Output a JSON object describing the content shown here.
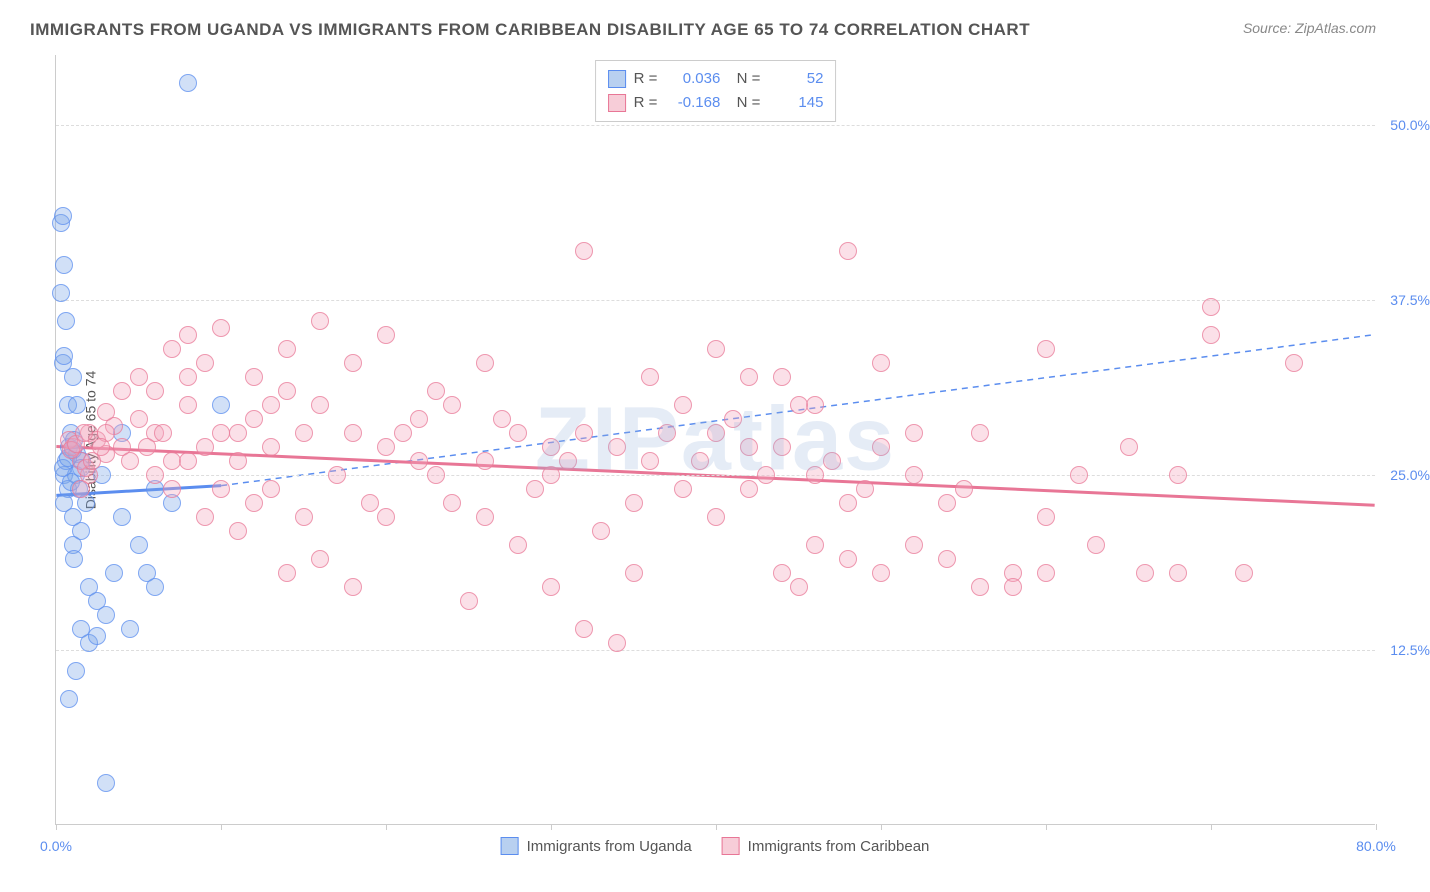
{
  "title": "IMMIGRANTS FROM UGANDA VS IMMIGRANTS FROM CARIBBEAN DISABILITY AGE 65 TO 74 CORRELATION CHART",
  "source": "Source: ZipAtlas.com",
  "watermark": "ZIPatlas",
  "chart": {
    "type": "scatter",
    "y_axis_title": "Disability Age 65 to 74",
    "xlim": [
      0,
      80
    ],
    "ylim": [
      0,
      55
    ],
    "xtick_labels": {
      "0": "0.0%",
      "80": "80.0%"
    },
    "ytick_labels": {
      "12.5": "12.5%",
      "25": "25.0%",
      "37.5": "37.5%",
      "50": "50.0%"
    },
    "xtick_positions": [
      0,
      10,
      20,
      30,
      40,
      50,
      60,
      70,
      80
    ],
    "grid_color": "#dddddd",
    "background_color": "#ffffff",
    "marker_size": 18,
    "series": [
      {
        "name": "Immigrants from Uganda",
        "color_fill": "rgba(123,167,232,0.35)",
        "color_stroke": "rgba(91,141,239,0.7)",
        "swatch_fill": "#b8d0f0",
        "swatch_border": "#5b8def",
        "R": "0.036",
        "N": "52",
        "trend": {
          "x1": 0,
          "y1": 23.5,
          "x2": 10,
          "y2": 24.2,
          "solid": true,
          "extend_x2": 80,
          "extend_y2": 35,
          "color": "#5b8def",
          "width": 3
        },
        "points": [
          [
            0.5,
            25
          ],
          [
            0.6,
            26
          ],
          [
            0.7,
            24
          ],
          [
            0.8,
            27
          ],
          [
            0.5,
            23
          ],
          [
            0.9,
            28
          ],
          [
            1.0,
            22
          ],
          [
            1.2,
            25
          ],
          [
            1.3,
            26.5
          ],
          [
            1.4,
            24
          ],
          [
            0.4,
            33
          ],
          [
            0.5,
            33.5
          ],
          [
            1.5,
            21
          ],
          [
            0.3,
            38
          ],
          [
            1.0,
            20
          ],
          [
            1.1,
            19
          ],
          [
            0.7,
            30
          ],
          [
            2,
            17
          ],
          [
            2.5,
            16
          ],
          [
            0.3,
            43
          ],
          [
            0.4,
            43.5
          ],
          [
            0.5,
            40
          ],
          [
            3,
            15
          ],
          [
            3.5,
            18
          ],
          [
            1.8,
            23
          ],
          [
            8,
            53
          ],
          [
            4,
            22
          ],
          [
            5,
            20
          ],
          [
            6,
            24
          ],
          [
            7,
            23
          ],
          [
            1.5,
            14
          ],
          [
            2,
            13
          ],
          [
            2.5,
            13.5
          ],
          [
            0.8,
            9
          ],
          [
            1.2,
            11
          ],
          [
            4.5,
            14
          ],
          [
            5.5,
            18
          ],
          [
            3,
            3
          ],
          [
            10,
            30
          ],
          [
            0.6,
            36
          ],
          [
            1.0,
            32
          ],
          [
            1.3,
            30
          ],
          [
            0.9,
            24.5
          ],
          [
            1.6,
            26
          ],
          [
            2.8,
            25
          ],
          [
            1.0,
            26.8
          ],
          [
            1.1,
            27.5
          ],
          [
            4,
            28
          ],
          [
            6,
            17
          ],
          [
            1.5,
            25.5
          ],
          [
            0.4,
            25.5
          ],
          [
            0.7,
            26.2
          ]
        ]
      },
      {
        "name": "Immigrants from Caribbean",
        "color_fill": "rgba(244,166,188,0.35)",
        "color_stroke": "rgba(232,118,150,0.7)",
        "swatch_fill": "#f7cdd8",
        "swatch_border": "#e87696",
        "R": "-0.168",
        "N": "145",
        "trend": {
          "x1": 0,
          "y1": 27,
          "x2": 80,
          "y2": 22.8,
          "solid": true,
          "color": "#e87696",
          "width": 3
        },
        "points": [
          [
            1,
            27
          ],
          [
            1.5,
            26
          ],
          [
            2,
            28
          ],
          [
            2.5,
            27.5
          ],
          [
            3,
            26.5
          ],
          [
            3.5,
            28.5
          ],
          [
            4,
            27
          ],
          [
            5,
            29
          ],
          [
            6,
            28
          ],
          [
            7,
            26
          ],
          [
            8,
            30
          ],
          [
            9,
            27
          ],
          [
            10,
            28
          ],
          [
            11,
            26
          ],
          [
            12,
            29
          ],
          [
            13,
            27
          ],
          [
            14,
            31
          ],
          [
            15,
            28
          ],
          [
            8,
            35
          ],
          [
            10,
            35.5
          ],
          [
            12,
            32
          ],
          [
            14,
            34
          ],
          [
            16,
            30
          ],
          [
            18,
            28
          ],
          [
            20,
            27
          ],
          [
            22,
            29
          ],
          [
            24,
            30
          ],
          [
            26,
            26
          ],
          [
            28,
            28
          ],
          [
            30,
            27
          ],
          [
            16,
            36
          ],
          [
            18,
            33
          ],
          [
            20,
            35
          ],
          [
            22,
            26
          ],
          [
            24,
            23
          ],
          [
            26,
            22
          ],
          [
            28,
            20
          ],
          [
            30,
            25
          ],
          [
            32,
            28
          ],
          [
            34,
            27
          ],
          [
            32,
            41
          ],
          [
            36,
            26
          ],
          [
            38,
            24
          ],
          [
            40,
            28
          ],
          [
            42,
            27
          ],
          [
            44,
            32
          ],
          [
            46,
            30
          ],
          [
            48,
            41
          ],
          [
            50,
            33
          ],
          [
            52,
            25
          ],
          [
            36,
            32
          ],
          [
            38,
            30
          ],
          [
            40,
            22
          ],
          [
            42,
            24
          ],
          [
            44,
            18
          ],
          [
            46,
            20
          ],
          [
            48,
            19
          ],
          [
            50,
            27
          ],
          [
            52,
            28
          ],
          [
            54,
            23
          ],
          [
            14,
            18
          ],
          [
            16,
            19
          ],
          [
            18,
            17
          ],
          [
            20,
            22
          ],
          [
            10,
            24
          ],
          [
            12,
            23
          ],
          [
            25,
            16
          ],
          [
            30,
            17
          ],
          [
            35,
            18
          ],
          [
            32,
            14
          ],
          [
            44,
            27
          ],
          [
            46,
            25
          ],
          [
            48,
            23
          ],
          [
            50,
            18
          ],
          [
            52,
            20
          ],
          [
            54,
            19
          ],
          [
            56,
            17
          ],
          [
            58,
            18
          ],
          [
            60,
            22
          ],
          [
            62,
            25
          ],
          [
            56,
            28
          ],
          [
            58,
            17
          ],
          [
            60,
            18
          ],
          [
            65,
            27
          ],
          [
            68,
            25
          ],
          [
            70,
            35
          ],
          [
            72,
            18
          ],
          [
            40,
            34
          ],
          [
            42,
            32
          ],
          [
            45,
            17
          ],
          [
            6,
            25
          ],
          [
            7,
            24
          ],
          [
            8,
            26
          ],
          [
            5,
            32
          ],
          [
            4,
            31
          ],
          [
            3,
            28
          ],
          [
            9,
            22
          ],
          [
            11,
            21
          ],
          [
            13,
            24
          ],
          [
            15,
            22
          ],
          [
            75,
            33
          ],
          [
            70,
            37
          ],
          [
            68,
            18
          ],
          [
            60,
            34
          ],
          [
            17,
            25
          ],
          [
            19,
            23
          ],
          [
            21,
            28
          ],
          [
            23,
            25
          ],
          [
            27,
            29
          ],
          [
            29,
            24
          ],
          [
            31,
            26
          ],
          [
            33,
            21
          ],
          [
            35,
            23
          ],
          [
            37,
            28
          ],
          [
            39,
            26
          ],
          [
            41,
            29
          ],
          [
            43,
            25
          ],
          [
            45,
            30
          ],
          [
            47,
            26
          ],
          [
            49,
            24
          ],
          [
            2,
            25
          ],
          [
            1.5,
            24
          ],
          [
            3,
            29.5
          ],
          [
            4.5,
            26
          ],
          [
            5.5,
            27
          ],
          [
            6.5,
            28
          ],
          [
            0.8,
            27.5
          ],
          [
            0.9,
            26.8
          ],
          [
            1.2,
            27.2
          ],
          [
            1.8,
            25.5
          ],
          [
            34,
            13
          ],
          [
            55,
            24
          ],
          [
            63,
            20
          ],
          [
            66,
            18
          ],
          [
            1.7,
            28
          ],
          [
            2.2,
            26
          ],
          [
            2.7,
            27
          ],
          [
            6,
            31
          ],
          [
            8,
            32
          ],
          [
            11,
            28
          ],
          [
            13,
            30
          ],
          [
            9,
            33
          ],
          [
            7,
            34
          ],
          [
            23,
            31
          ],
          [
            26,
            33
          ]
        ]
      }
    ]
  },
  "legend_bottom": [
    {
      "label": "Immigrants from Uganda",
      "fill": "#b8d0f0",
      "border": "#5b8def"
    },
    {
      "label": "Immigrants from Caribbean",
      "fill": "#f7cdd8",
      "border": "#e87696"
    }
  ]
}
